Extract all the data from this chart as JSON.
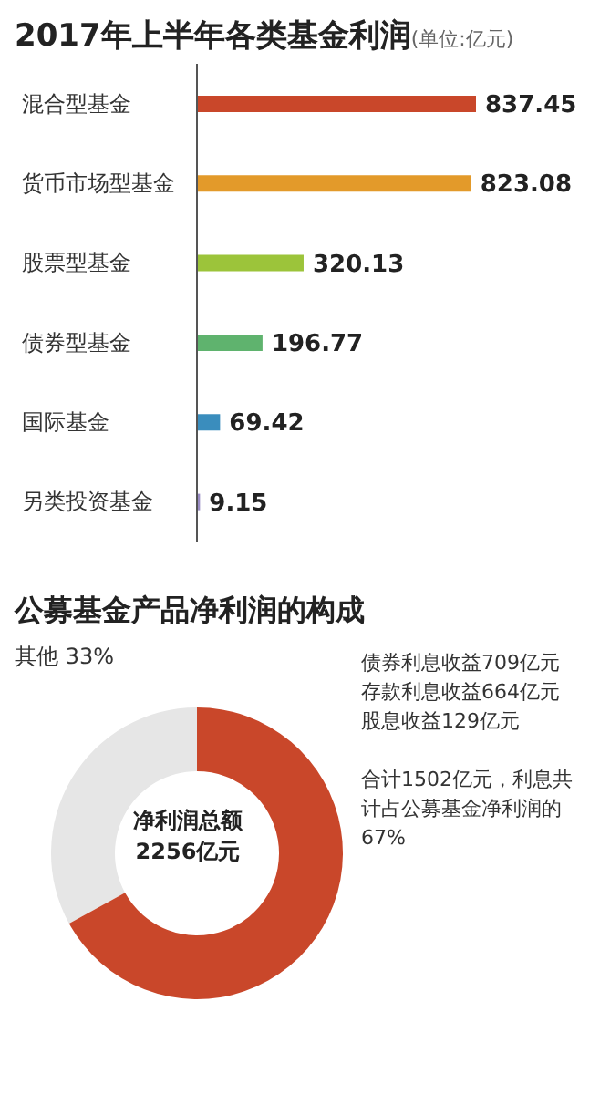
{
  "chart_data": [
    {
      "type": "bar",
      "orientation": "horizontal",
      "title": "2017年上半年各类基金利润",
      "subtitle": "(单位:亿元)",
      "categories": [
        "混合型基金",
        "货币市场型基金",
        "股票型基金",
        "债券型基金",
        "国际基金",
        "另类投资基金"
      ],
      "values": [
        837.45,
        823.08,
        320.13,
        196.77,
        69.42,
        9.15
      ],
      "colors": [
        "#c9472a",
        "#e39a2a",
        "#9cc43a",
        "#5fb36e",
        "#3a8dbd",
        "#9a8cc4"
      ],
      "data_labels": true
    },
    {
      "type": "donut",
      "title": "公募基金产品净利润的构成",
      "categories": [
        "其他",
        null
      ],
      "values": [
        33,
        67
      ],
      "value_labels": [
        "33%",
        null
      ],
      "colors": [
        "#e6e6e6",
        "#c9472a"
      ],
      "annotations": [
        "净利润总额 2256亿元",
        "债券利息收益709亿元",
        "存款利息收益664亿元",
        "股息收益129亿元",
        "合计1502亿元，利息共计占公募基金净利润的67%"
      ]
    }
  ]
}
